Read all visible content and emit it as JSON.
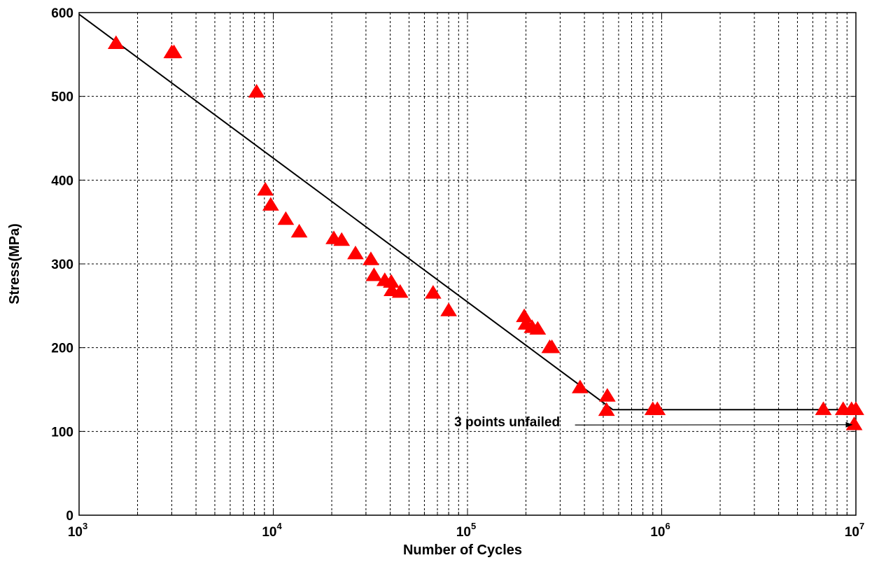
{
  "chart_data": {
    "type": "scatter",
    "xscale": "log",
    "xlim": [
      1000,
      10000000
    ],
    "ylim": [
      0,
      600
    ],
    "grid": true,
    "xlabel": "Number  of Cycles",
    "ylabel": "Stress(MPa)",
    "y_ticks": [
      "0",
      "100",
      "200",
      "300",
      "400",
      "500",
      "600"
    ],
    "x_ticks": [
      {
        "base": "10",
        "exp": "3"
      },
      {
        "base": "10",
        "exp": "4"
      },
      {
        "base": "10",
        "exp": "5"
      },
      {
        "base": "10",
        "exp": "6"
      },
      {
        "base": "10",
        "exp": "7"
      }
    ],
    "colors": {
      "marker": "#ff0000",
      "line": "#000000"
    },
    "series": [
      {
        "marker": "triangle",
        "points": [
          [
            1550,
            563
          ],
          [
            3000,
            552
          ],
          [
            3080,
            552
          ],
          [
            8200,
            505
          ],
          [
            9100,
            388
          ],
          [
            9700,
            370
          ],
          [
            11600,
            353
          ],
          [
            13600,
            338
          ],
          [
            20500,
            330
          ],
          [
            22500,
            328
          ],
          [
            26500,
            312
          ],
          [
            31800,
            305
          ],
          [
            33000,
            286
          ],
          [
            37500,
            280
          ],
          [
            40500,
            278
          ],
          [
            40800,
            268
          ],
          [
            45000,
            266
          ],
          [
            66500,
            265
          ],
          [
            80000,
            244
          ],
          [
            196000,
            237
          ],
          [
            200000,
            228
          ],
          [
            215000,
            224
          ],
          [
            230000,
            222
          ],
          [
            265000,
            200
          ],
          [
            272000,
            200
          ],
          [
            380000,
            152
          ],
          [
            525000,
            142
          ],
          [
            520000,
            125
          ],
          [
            900000,
            126
          ],
          [
            950000,
            126
          ],
          [
            6800000,
            126
          ],
          [
            8600000,
            126
          ],
          [
            9500000,
            126
          ],
          [
            10000000,
            126
          ],
          [
            9800000,
            108
          ]
        ]
      },
      {
        "style": "line",
        "points": [
          [
            1000,
            598
          ],
          [
            560000,
            126
          ],
          [
            10000000,
            126
          ]
        ]
      }
    ],
    "annotations": [
      {
        "text": "3 points unfailed",
        "x": 160000,
        "y": 106,
        "arrow_to": [
          9700000,
          108
        ]
      }
    ]
  }
}
